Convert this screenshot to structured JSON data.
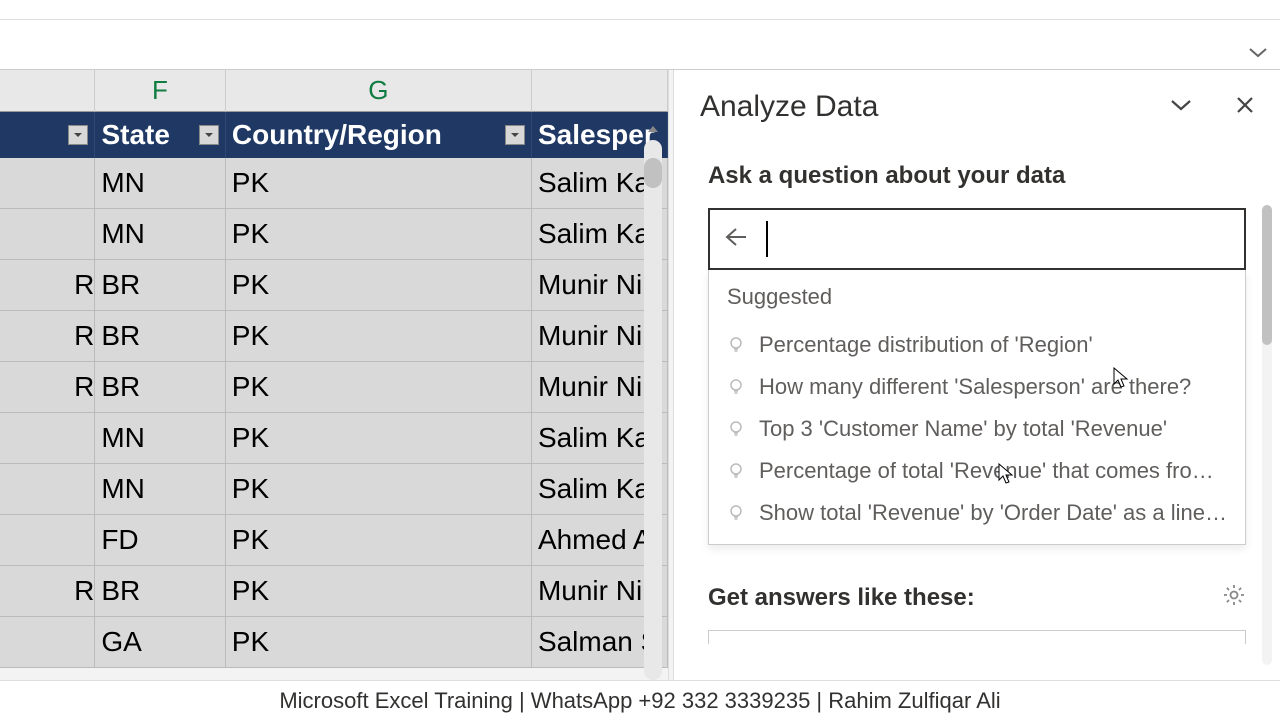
{
  "columns": {
    "f_letter": "F",
    "g_letter": "G",
    "e_header": "",
    "f_header": "State",
    "g_header": "Country/Region",
    "h_header": "Salesper"
  },
  "rows": [
    {
      "e": "",
      "f": "MN",
      "g": "PK",
      "h": "Salim Kar"
    },
    {
      "e": "",
      "f": "MN",
      "g": "PK",
      "h": "Salim Kar"
    },
    {
      "e": "R",
      "f": "BR",
      "g": "PK",
      "h": "Munir Ni"
    },
    {
      "e": "R",
      "f": "BR",
      "g": "PK",
      "h": "Munir Ni"
    },
    {
      "e": "R",
      "f": "BR",
      "g": "PK",
      "h": "Munir Ni"
    },
    {
      "e": "",
      "f": "MN",
      "g": "PK",
      "h": "Salim Kar"
    },
    {
      "e": "",
      "f": "MN",
      "g": "PK",
      "h": "Salim Kar"
    },
    {
      "e": "",
      "f": "FD",
      "g": "PK",
      "h": "Ahmed A"
    },
    {
      "e": "R",
      "f": "BR",
      "g": "PK",
      "h": "Munir Ni"
    },
    {
      "e": "",
      "f": "GA",
      "g": "PK",
      "h": "Salman S"
    }
  ],
  "pane": {
    "title": "Analyze Data",
    "ask_label": "Ask a question about your data",
    "suggested_label": "Suggested",
    "suggestions": [
      "Percentage distribution of 'Region'",
      "How many different 'Salesperson' are there?",
      "Top 3 'Customer Name' by total 'Revenue'",
      "Percentage of total 'Revenue' that comes fro…",
      "Show total 'Revenue' by 'Order Date' as a line…"
    ],
    "answers_label": "Get answers like these:"
  },
  "footer": "Microsoft Excel Training | WhatsApp +92 332 3339235 | Rahim Zulfiqar Ali"
}
